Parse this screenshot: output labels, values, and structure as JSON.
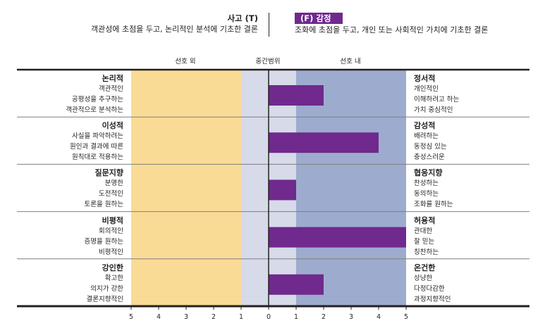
{
  "header": {
    "left_title": "사고 (T)",
    "left_desc": "객관성에 초점을 두고, 논리적인 분석에 기초한 결론",
    "right_title": "(F) 감정",
    "right_desc": "조화에 초점을 두고, 개인 또는 사회적인 가치에 기초한 결론"
  },
  "zones": {
    "outside": "선호 외",
    "middle": "중간범위",
    "inside": "선호 내"
  },
  "colors": {
    "outside_fill": "#fadb96",
    "middle_fill": "#d6dae9",
    "inside_fill": "#9dacce",
    "bar": "#70298d",
    "line": "#231f20",
    "row_divider": "#7f7f7f"
  },
  "chart_data": {
    "type": "bar",
    "orientation": "horizontal",
    "title": "사고 (T) – (F) 감정",
    "x_axis_ticks": [
      "5",
      "4",
      "3",
      "2",
      "1",
      "0",
      "1",
      "2",
      "3",
      "4",
      "5"
    ],
    "xlim": [
      -5,
      5
    ],
    "categories": [
      "논리적 / 정서적",
      "이성적 / 감성적",
      "질문지향 / 협응지향",
      "비평적 / 허용적",
      "강인한 / 온건한"
    ],
    "values": [
      2,
      4,
      1,
      5,
      2
    ],
    "rows": [
      {
        "left_title": "논리적",
        "left_items": [
          "객관적인",
          "공평성을 추구하는",
          "객관적으로 분석하는"
        ],
        "right_title": "정서적",
        "right_items": [
          "개인적인",
          "이해하려고 하는",
          "가치 중심적인"
        ],
        "value": 2
      },
      {
        "left_title": "이성적",
        "left_items": [
          "사실을 파악하려는",
          "원인과 결과에 따른",
          "원칙대로 적용하는"
        ],
        "right_title": "감성적",
        "right_items": [
          "배려하는",
          "동정심 있는",
          "충성스러운"
        ],
        "value": 4
      },
      {
        "left_title": "질문지향",
        "left_items": [
          "분명한",
          "도전적인",
          "토론을 원하는"
        ],
        "right_title": "협응지향",
        "right_items": [
          "찬성하는",
          "동의하는",
          "조화를 원하는"
        ],
        "value": 1
      },
      {
        "left_title": "비평적",
        "left_items": [
          "회의적인",
          "증명을 원하는",
          "비평적인"
        ],
        "right_title": "허용적",
        "right_items": [
          "관대한",
          "잘 믿는",
          "칭찬하는"
        ],
        "value": 5
      },
      {
        "left_title": "강인한",
        "left_items": [
          "확고한",
          "의지가 강한",
          "결론지향적인"
        ],
        "right_title": "온건한",
        "right_items": [
          "상냥한",
          "다정다감한",
          "과정지향적인"
        ],
        "value": 2
      }
    ]
  }
}
